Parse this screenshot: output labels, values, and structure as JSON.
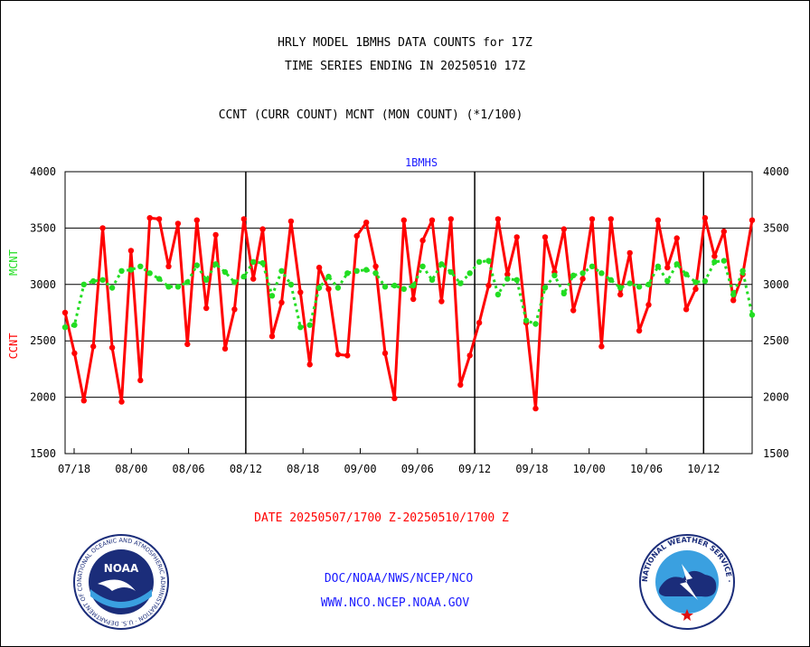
{
  "header": {
    "title_line1": "HRLY MODEL 1BMHS DATA COUNTS for 17Z",
    "title_line2": "TIME SERIES ENDING IN 20250510 17Z",
    "subtitle": "CCNT (CURR COUNT) MCNT (MON COUNT) (*1/100)"
  },
  "footer": {
    "date_range": "DATE 20250507/1700 Z-20250510/1700 Z",
    "org_path": "DOC/NOAA/NWS/NCEP/NCO",
    "website": "WWW.NCO.NCEP.NOAA.GOV"
  },
  "logos": {
    "noaa_text": "NOAA",
    "noaa_ring": "NATIONAL OCEANIC AND ATMOSPHERIC ADMINISTRATION · U.S. DEPARTMENT OF COMMERCE ·",
    "nws_ring": "NATIONAL WEATHER SERVICE ·"
  },
  "colors": {
    "ccnt": "#ff0000",
    "mcnt": "#22dd22",
    "text": "#000000",
    "date_text": "#ff0000",
    "link_text": "#1a1aff",
    "chart_label": "#1a1aff"
  },
  "chart_data": {
    "type": "line",
    "title": "1BMHS",
    "ylabel_left_ccnt": "CCNT",
    "ylabel_left_mcnt": "MCNT",
    "ylim": [
      1500,
      4000
    ],
    "yticks": [
      1500,
      2000,
      2500,
      3000,
      3500,
      4000
    ],
    "ytick_labels": [
      "1500",
      "2000",
      "2500",
      "3000",
      "3500",
      "4000"
    ],
    "xtick_labels": [
      "07/18",
      "08/00",
      "08/06",
      "08/12",
      "08/18",
      "09/00",
      "09/06",
      "09/12",
      "09/18",
      "10/00",
      "10/06",
      "10/12"
    ],
    "grid_y": true,
    "day_separators": [
      "08/12",
      "09/12",
      "10/12"
    ],
    "x_start": "07/17",
    "x_end": "10/17",
    "series": [
      {
        "name": "CCNT",
        "color": "#ff0000",
        "values": [
          2750,
          2390,
          1970,
          2450,
          3500,
          2440,
          1960,
          3300,
          2150,
          3590,
          3580,
          3160,
          3540,
          2470,
          3570,
          2790,
          3440,
          2430,
          2780,
          3580,
          3050,
          3490,
          2540,
          2840,
          3560,
          2930,
          2290,
          3150,
          2960,
          2380,
          2370,
          3430,
          3550,
          3160,
          2390,
          1990,
          3570,
          2870,
          3390,
          3570,
          2850,
          3580,
          2110,
          2370,
          2660,
          2990,
          3580,
          3090,
          3420,
          2660,
          1900,
          3420,
          3110,
          3490,
          2770,
          3050,
          3580,
          2450,
          3580,
          2910,
          3280,
          2590,
          2820,
          3570,
          3150,
          3410,
          2780,
          2960,
          3590,
          3250,
          3470,
          2860,
          3090,
          3570
        ]
      },
      {
        "name": "MCNT",
        "color": "#22dd22",
        "values": [
          2620,
          2640,
          3000,
          3030,
          3040,
          2970,
          3120,
          3130,
          3160,
          3100,
          3050,
          2980,
          2980,
          3020,
          3170,
          3040,
          3180,
          3110,
          3020,
          3070,
          3200,
          3190,
          2900,
          3120,
          3000,
          2620,
          2640,
          2970,
          3070,
          2970,
          3100,
          3120,
          3130,
          3100,
          2980,
          2990,
          2960,
          2990,
          3160,
          3040,
          3180,
          3110,
          3010,
          3100,
          3200,
          3210,
          2910,
          3050,
          3040,
          2680,
          2650,
          2970,
          3080,
          2920,
          3080,
          3100,
          3160,
          3100,
          3040,
          2970,
          3010,
          2980,
          3000,
          3160,
          3030,
          3180,
          3090,
          3020,
          3030,
          3200,
          3210,
          2910,
          3120,
          2730
        ]
      }
    ]
  }
}
